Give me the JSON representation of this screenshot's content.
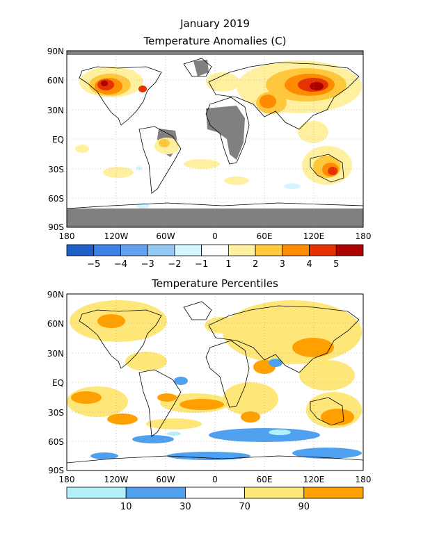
{
  "figure": {
    "month_title": "January 2019",
    "panels": [
      {
        "id": "anomalies",
        "title": "Temperature Anomalies (C)",
        "lat_labels": [
          "90N",
          "60N",
          "30N",
          "EQ",
          "30S",
          "60S",
          "90S"
        ],
        "lon_labels": [
          "180",
          "120W",
          "60W",
          "0",
          "60E",
          "120E",
          "180"
        ],
        "legend_labels": [
          "−5",
          "−4",
          "−3",
          "−2",
          "−1",
          "1",
          "2",
          "3",
          "4",
          "5"
        ],
        "legend_colors": [
          "#1e5fc8",
          "#3c82e6",
          "#64a0f0",
          "#96c8f5",
          "#d2f5ff",
          "#ffffff",
          "#fff0a0",
          "#ffc83c",
          "#ff8c00",
          "#e63200",
          "#aa0000"
        ],
        "missing_color": "#808080"
      },
      {
        "id": "percentiles",
        "title": "Temperature Percentiles",
        "lat_labels": [
          "90N",
          "60N",
          "30N",
          "EQ",
          "30S",
          "60S",
          "90S"
        ],
        "lon_labels": [
          "180",
          "120W",
          "60W",
          "0",
          "60E",
          "120E",
          "180"
        ],
        "legend_labels": [
          "10",
          "30",
          "70",
          "90"
        ],
        "legend_colors": [
          "#b4f0fa",
          "#50a0f0",
          "#ffffff",
          "#ffe678",
          "#ffa000"
        ]
      }
    ]
  }
}
